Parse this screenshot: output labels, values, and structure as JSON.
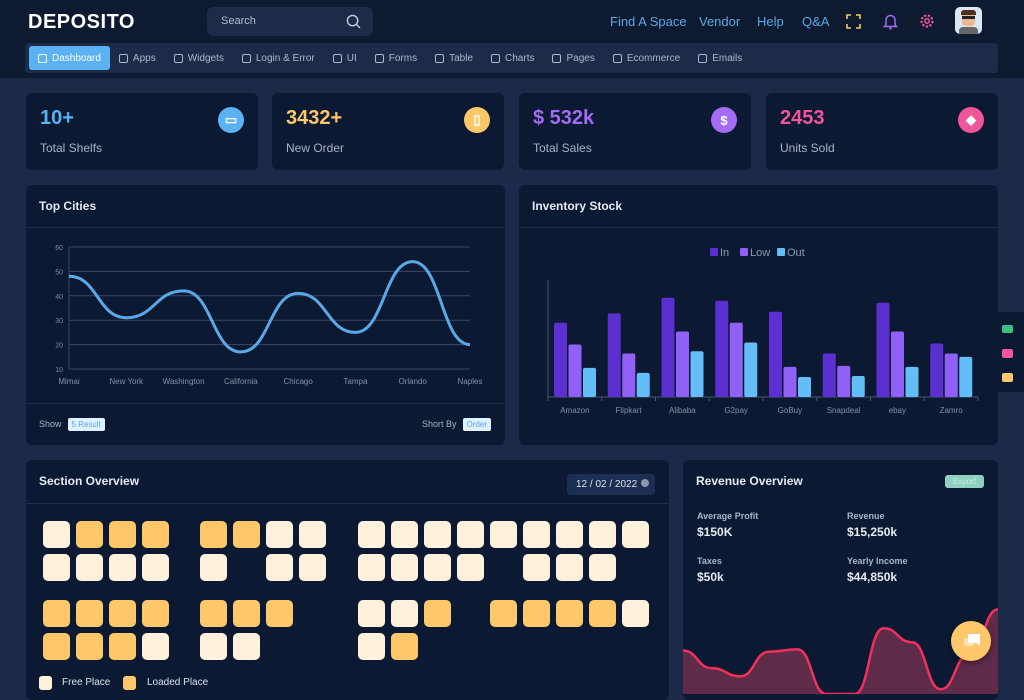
{
  "app": {
    "title": "DEPOSITO",
    "search_placeholder": "Search"
  },
  "header": {
    "links": [
      "Find A Space",
      "Vendor",
      "Help",
      "Q&A"
    ],
    "icons": [
      "fullscreen-icon",
      "bell-icon",
      "gear-icon",
      "avatar"
    ]
  },
  "nav": {
    "items": [
      {
        "label": "Dashboard",
        "icon": "monitor-icon",
        "active": true
      },
      {
        "label": "Apps",
        "icon": "layers-icon"
      },
      {
        "label": "Widgets",
        "icon": "layout-icon"
      },
      {
        "label": "Login & Error",
        "icon": "lock-icon"
      },
      {
        "label": "UI",
        "icon": "edit-icon"
      },
      {
        "label": "Forms",
        "icon": "file-icon"
      },
      {
        "label": "Table",
        "icon": "table-icon"
      },
      {
        "label": "Charts",
        "icon": "pie-chart-icon"
      },
      {
        "label": "Pages",
        "icon": "folder-icon"
      },
      {
        "label": "Ecommerce",
        "icon": "shopping-bag-icon"
      },
      {
        "label": "Emails",
        "icon": "mail-icon"
      }
    ]
  },
  "stats": [
    {
      "value": "10+",
      "label": "Total Shelfs",
      "color": "#5ab2f2",
      "icon": "inbox-icon"
    },
    {
      "value": "3432+",
      "label": "New Order",
      "color": "#fdc76a",
      "icon": "shopping-bag-icon"
    },
    {
      "value": "$ 532k",
      "label": "Total Sales",
      "color": "#a46bf5",
      "icon": "dollar-icon"
    },
    {
      "value": "2453",
      "label": "Units Sold",
      "color": "#f1569b",
      "icon": "dropbox-icon"
    }
  ],
  "top_cities": {
    "title": "Top Cities",
    "show_label": "Show",
    "show_value": "5 Result",
    "sort_label": "Short By",
    "sort_value": "Order"
  },
  "inventory": {
    "title": "Inventory Stock"
  },
  "section_overview": {
    "title": "Section Overview",
    "date": "12 / 02 / 2022",
    "legend_free": "Free Place",
    "legend_loaded": "Loaded Place",
    "groups": [
      {
        "rows": [
          [
            "F",
            "L",
            "L",
            "L"
          ],
          [
            "F",
            "F",
            "F",
            "F"
          ]
        ]
      },
      {
        "rows": [
          [
            "L",
            "L",
            "F",
            "F"
          ],
          [
            "F",
            "",
            "F",
            "F"
          ]
        ]
      },
      {
        "rows": [
          [
            "F",
            "F",
            "F",
            "F",
            "F",
            "F",
            "F",
            "F",
            "F"
          ],
          [
            "F",
            "F",
            "F",
            "F",
            "",
            "F",
            "F",
            "F",
            ""
          ]
        ]
      },
      {
        "rows": [
          [
            "L",
            "L",
            "L",
            "L"
          ],
          [
            "L",
            "L",
            "L",
            "F"
          ]
        ]
      },
      {
        "rows": [
          [
            "L",
            "L",
            "L",
            ""
          ],
          [
            "F",
            "F",
            "",
            ""
          ]
        ]
      },
      {
        "rows": [
          [
            "F",
            "F",
            "L",
            "",
            "L",
            "L",
            "L",
            "L",
            "F"
          ],
          [
            "F",
            "L",
            "",
            "",
            "",
            "",
            "",
            "",
            ""
          ]
        ]
      }
    ]
  },
  "revenue": {
    "title": "Revenue Overview",
    "export": "Export",
    "items": [
      {
        "label": "Average Profit",
        "value": "$150K"
      },
      {
        "label": "Revenue",
        "value": "$15,250k"
      },
      {
        "label": "Taxes",
        "value": "$50k"
      },
      {
        "label": "Yearly Income",
        "value": "$44,850k"
      }
    ]
  },
  "chart_data": [
    {
      "type": "line",
      "categories": [
        "Mimai",
        "New York",
        "Washington",
        "California",
        "Chicago",
        "Tampa",
        "Orlando",
        "Naples"
      ],
      "values": [
        48,
        31,
        42,
        17,
        41,
        25,
        54,
        20
      ],
      "ylim": [
        10,
        60
      ],
      "yticks": [
        10,
        20,
        30,
        40,
        50,
        60
      ],
      "grid": true,
      "color": "#5aa9e6"
    },
    {
      "type": "bar",
      "categories": [
        "Amazon",
        "Flipkart",
        "Alibaba",
        "G2pay",
        "GoBuy",
        "Snapdeal",
        "ebay",
        "Zamro"
      ],
      "series": [
        {
          "name": "In",
          "color": "#5b2fd0",
          "values": [
            222,
            250,
            297,
            288,
            255,
            130,
            282,
            160
          ]
        },
        {
          "name": "Low",
          "color": "#9160f7",
          "values": [
            157,
            130,
            196,
            222,
            90,
            93,
            196,
            130
          ]
        },
        {
          "name": "Out",
          "color": "#63bdf6",
          "values": [
            87,
            72,
            137,
            163,
            60,
            63,
            90,
            120
          ]
        }
      ],
      "ylim": [
        0,
        350
      ],
      "legend": "top-center"
    },
    {
      "type": "area",
      "values": [
        37,
        22,
        15,
        36,
        38,
        0,
        0,
        56,
        44,
        4,
        34,
        72
      ],
      "color": "#f2305e"
    }
  ]
}
